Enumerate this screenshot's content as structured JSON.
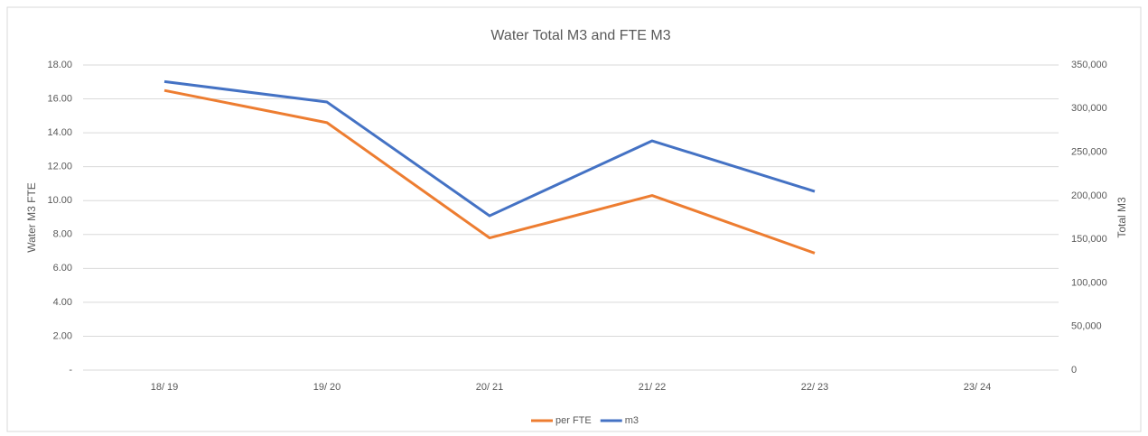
{
  "chart_data": {
    "type": "line",
    "title": "Water Total M3 and FTE M3",
    "ylabel": "Water M3 FTE",
    "y2label": "Total M3",
    "categories": [
      "18/ 19",
      "19/ 20",
      "20/ 21",
      "21/ 22",
      "22/ 23",
      "23/ 24"
    ],
    "series": [
      {
        "name": "per FTE",
        "color": "#ed7d31",
        "values": [
          16.5,
          14.6,
          7.8,
          10.3,
          6.9,
          null
        ]
      },
      {
        "name": "m3",
        "color": "#4472c4",
        "axis": "y2",
        "values": [
          331000,
          307500,
          177000,
          263000,
          205000,
          null
        ]
      }
    ],
    "ylim": [
      0,
      18
    ],
    "yticks": [
      {
        "value": 0,
        "label": "-"
      },
      {
        "value": 2,
        "label": "2.00"
      },
      {
        "value": 4,
        "label": "4.00"
      },
      {
        "value": 6,
        "label": "6.00"
      },
      {
        "value": 8,
        "label": "8.00"
      },
      {
        "value": 10,
        "label": "10.00"
      },
      {
        "value": 12,
        "label": "12.00"
      },
      {
        "value": 14,
        "label": "14.00"
      },
      {
        "value": 16,
        "label": "16.00"
      },
      {
        "value": 18,
        "label": "18.00"
      }
    ],
    "y2lim": [
      0,
      350000
    ],
    "y2ticks": [
      0,
      {
        "value": 50000,
        "label": "50,000"
      },
      {
        "value": 100000,
        "label": "100,000"
      },
      {
        "value": 150000,
        "label": "150,000"
      },
      {
        "value": 200000,
        "label": "200,000"
      },
      {
        "value": 250000,
        "label": "250,000"
      },
      {
        "value": 300000,
        "label": "300,000"
      },
      {
        "value": 350000,
        "label": "350,000"
      }
    ],
    "grid": true,
    "legend": "bottom"
  }
}
